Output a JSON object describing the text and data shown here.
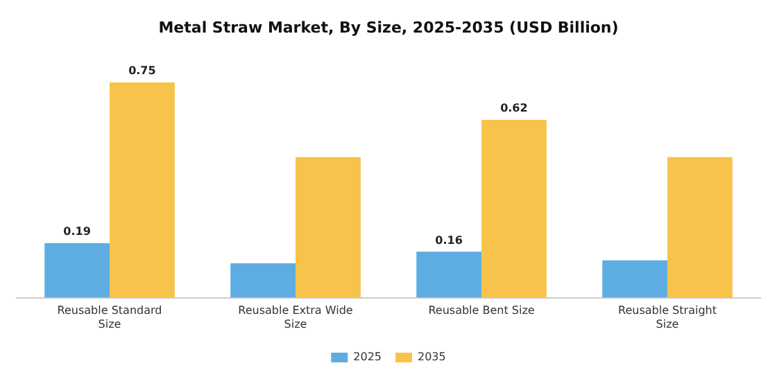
{
  "chart_data": {
    "type": "bar",
    "title": "Metal Straw Market, By Size, 2025-2035 (USD Billion)",
    "categories": [
      "Reusable Standard Size",
      "Reusable Extra Wide Size",
      "Reusable Bent Size",
      "Reusable Straight Size"
    ],
    "series": [
      {
        "name": "2025",
        "color": "#5dade2",
        "values": [
          0.19,
          0.12,
          0.16,
          0.13
        ],
        "value_labels": [
          "0.19",
          null,
          "0.16",
          null
        ]
      },
      {
        "name": "2035",
        "color": "#f8c34a",
        "values": [
          0.75,
          0.49,
          0.62,
          0.49
        ],
        "value_labels": [
          "0.75",
          null,
          "0.62",
          null
        ]
      }
    ],
    "legend": "bottom",
    "grid": false
  }
}
